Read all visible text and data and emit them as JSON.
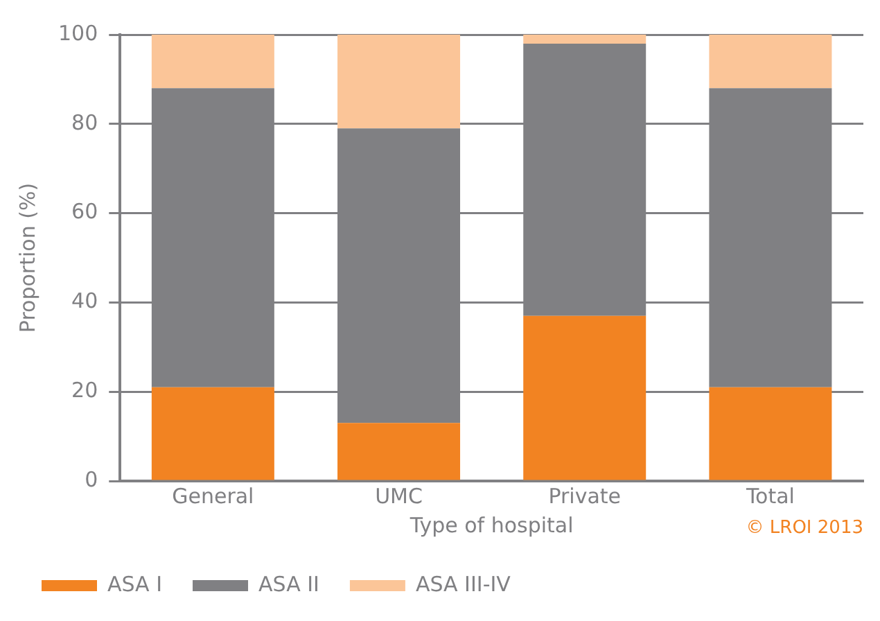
{
  "chart_data": {
    "type": "bar",
    "stacked": true,
    "xlabel": "Type of hospital",
    "ylabel": "Proportion (%)",
    "categories": [
      "General",
      "UMC",
      "Private",
      "Total"
    ],
    "series": [
      {
        "name": "ASA I",
        "color": "#f28322",
        "values": [
          21,
          13,
          37,
          21
        ]
      },
      {
        "name": "ASA II",
        "color": "#808083",
        "values": [
          67,
          66,
          61,
          67
        ]
      },
      {
        "name": "ASA III-IV",
        "color": "#fbc598",
        "values": [
          12,
          21,
          2,
          12
        ]
      }
    ],
    "ylim": [
      0,
      100
    ],
    "yticks": [
      0,
      20,
      40,
      60,
      80,
      100
    ],
    "grid": "y",
    "legend": "bottom",
    "annotations": [
      "© LROI 2013"
    ]
  }
}
